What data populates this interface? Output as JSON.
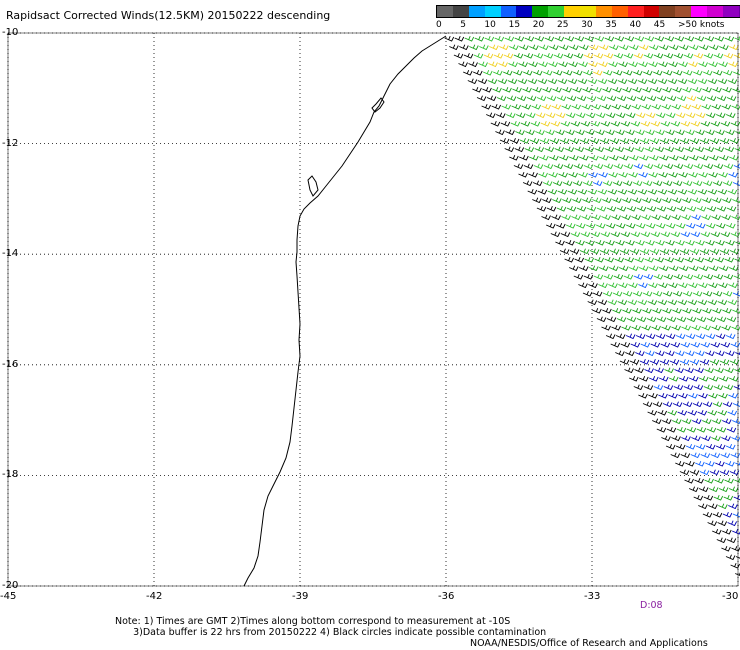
{
  "title": "Rapidsact Corrected Winds(12.5KM) 20150222 descending",
  "legend": {
    "colors": [
      "#666666",
      "#444444",
      "#00a0ff",
      "#00d0ff",
      "#1060ff",
      "#0000c0",
      "#00a000",
      "#30d030",
      "#ffd000",
      "#f0e000",
      "#ff9000",
      "#ff6000",
      "#ff2020",
      "#d00000",
      "#804020",
      "#a05030",
      "#ff00ff",
      "#d000d0",
      "#9000c0",
      "#6a00a0"
    ],
    "labels": [
      "0",
      "5",
      "10",
      "15",
      "20",
      "25",
      "30",
      "35",
      "40",
      "45",
      ">50 knots"
    ]
  },
  "map": {
    "lon_range": [
      -45,
      -30
    ],
    "lat_range": [
      -10,
      -20
    ],
    "y_tick_labels": [
      "-10",
      "-12",
      "-14",
      "-16",
      "-18",
      "-20"
    ],
    "x_tick_labels": [
      "-45",
      "-42",
      "-39",
      "-36",
      "-33",
      "-30"
    ],
    "grid": "dotted"
  },
  "timestamp_label": "D:08",
  "notes": "Note: 1) Times are GMT 2)Times along bottom correspond to measurement at -10S\n      3)Data buffer is 22 hrs from 20150222 4) Black circles indicate possible contamination",
  "credit": "NOAA/NESDIS/Office of Research and Applications"
}
